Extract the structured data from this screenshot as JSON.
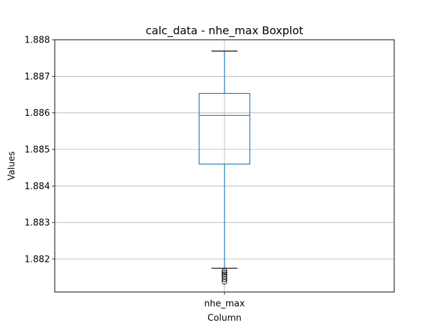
{
  "chart_data": {
    "type": "boxplot",
    "title": "calc_data - nhe_max Boxplot",
    "xlabel": "Column",
    "ylabel": "Values",
    "categories": [
      "nhe_max"
    ],
    "ylim": [
      1.8811,
      1.888
    ],
    "yticks": [
      "1.882",
      "1.883",
      "1.884",
      "1.885",
      "1.886",
      "1.887",
      "1.888"
    ],
    "grid": true,
    "boxes": [
      {
        "name": "nhe_max",
        "whisker_low": 1.88175,
        "q1": 1.8846,
        "median": 1.88593,
        "q3": 1.88653,
        "whisker_high": 1.88769,
        "outliers": [
          1.88168,
          1.88163,
          1.88158,
          1.88152,
          1.88145,
          1.88138
        ]
      }
    ],
    "colors": {
      "box": "#1f77b4",
      "median": "#2ca02c",
      "grid": "#b0b0b0",
      "outlier": "#000000"
    }
  }
}
